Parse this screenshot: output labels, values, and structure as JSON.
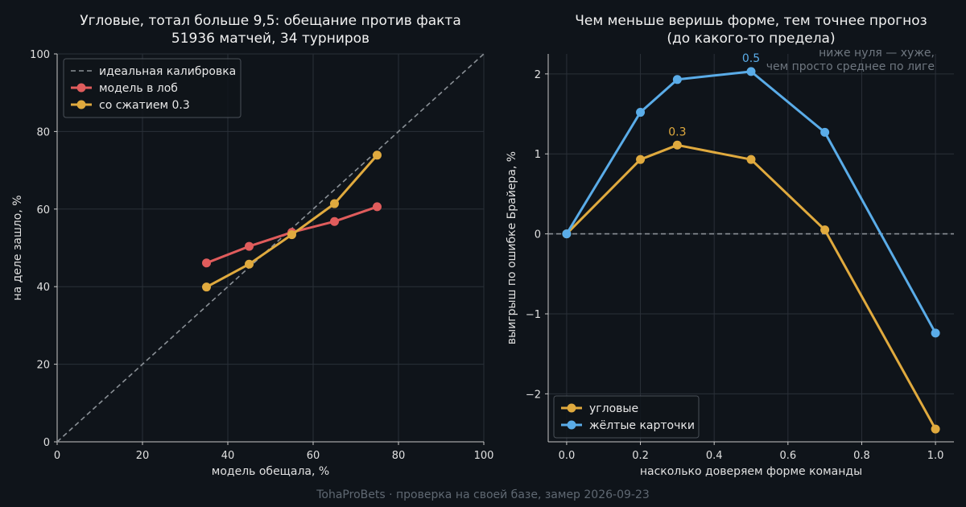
{
  "footer": "TohaProBets · проверка на своей базе, замер 2026-09-23",
  "chart_data": [
    {
      "type": "line",
      "title": [
        "Угловые, тотал больше 9,5: обещание против факта",
        "51936 матчей, 34 турниров"
      ],
      "xlabel": "модель обещала, %",
      "ylabel": "на деле зашло, %",
      "xlim": [
        0,
        100
      ],
      "ylim": [
        0,
        100
      ],
      "xticks": [
        0,
        20,
        40,
        60,
        80,
        100
      ],
      "yticks": [
        0,
        20,
        40,
        60,
        80,
        100
      ],
      "grid": true,
      "legend_position": "top-left",
      "reference_line": {
        "name": "идеальная калибровка",
        "x": [
          0,
          100
        ],
        "y": [
          0,
          100
        ],
        "color": "#8a9096",
        "style": "dashed"
      },
      "series": [
        {
          "name": "модель в лоб",
          "color": "#e05c5c",
          "x": [
            35,
            45,
            55,
            65,
            75
          ],
          "y": [
            46.1,
            50.4,
            54.0,
            56.8,
            60.6
          ]
        },
        {
          "name": "со сжатием 0.3",
          "color": "#e0aa3e",
          "x": [
            35,
            45,
            55,
            65,
            75
          ],
          "y": [
            39.9,
            45.8,
            53.4,
            61.4,
            73.9
          ]
        }
      ]
    },
    {
      "type": "line",
      "title": [
        "Чем меньше веришь форме, тем точнее прогноз",
        "(до какого-то предела)"
      ],
      "xlabel": "насколько доверяем форме команды",
      "ylabel": "выигрыш по ошибке Брайера, %",
      "xlim": [
        -0.05,
        1.05
      ],
      "ylim": [
        -2.6,
        2.25
      ],
      "xticks": [
        0.0,
        0.2,
        0.4,
        0.6,
        0.8,
        1.0
      ],
      "yticks": [
        -2,
        -1,
        0,
        1,
        2
      ],
      "grid": true,
      "legend_position": "bottom-left",
      "zero_line": {
        "y": 0,
        "color": "#8a9096",
        "style": "dashed"
      },
      "note": [
        "ниже нуля — хуже,",
        "чем просто среднее по лиге"
      ],
      "series": [
        {
          "name": "угловые",
          "color": "#e0aa3e",
          "x": [
            0.0,
            0.2,
            0.3,
            0.5,
            0.7,
            1.0
          ],
          "y": [
            0.0,
            0.93,
            1.11,
            0.93,
            0.05,
            -2.44
          ]
        },
        {
          "name": "жёлтые карточки",
          "color": "#5aace8",
          "x": [
            0.0,
            0.2,
            0.3,
            0.5,
            0.7,
            1.0
          ],
          "y": [
            0.0,
            1.52,
            1.93,
            2.03,
            1.27,
            -1.24
          ]
        }
      ],
      "annotations": [
        {
          "text": "0.3",
          "series": "угловые",
          "x": 0.3,
          "y": 1.11,
          "color": "#e0aa3e"
        },
        {
          "text": "0.5",
          "series": "жёлтые карточки",
          "x": 0.5,
          "y": 2.03,
          "color": "#5aace8"
        }
      ]
    }
  ]
}
